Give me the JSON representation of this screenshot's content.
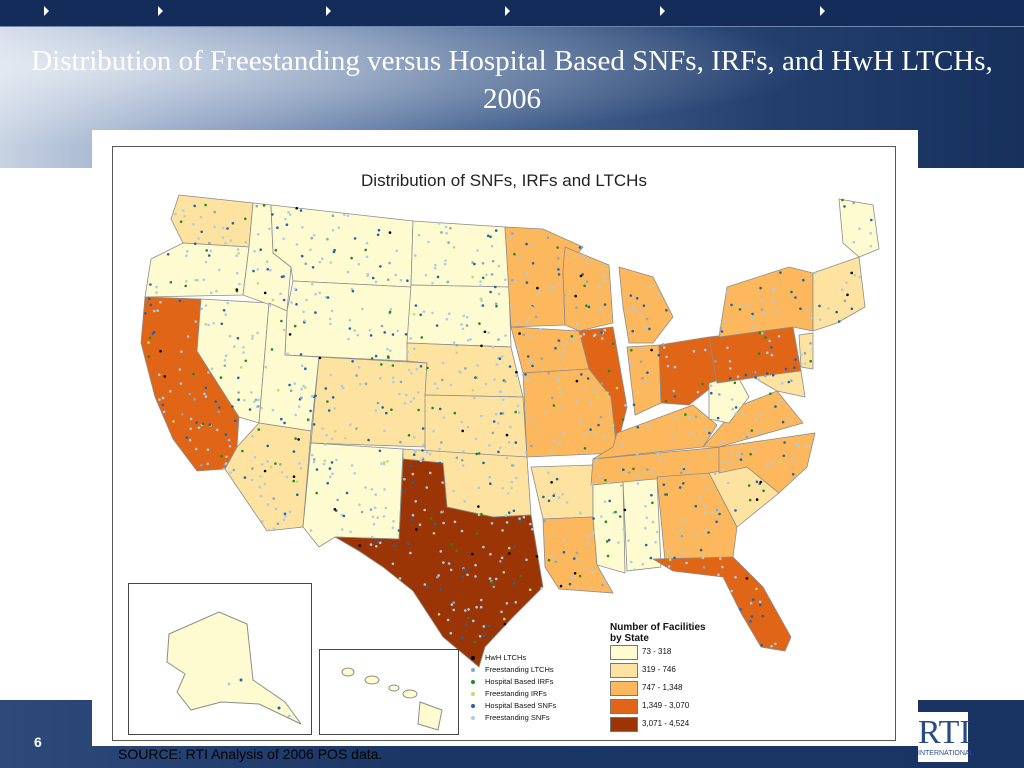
{
  "slide": {
    "title": "Distribution of Freestanding versus Hospital Based SNFs, IRFs, and HwH LTCHs, 2006",
    "page_number": "6",
    "source": "SOURCE: RTI Analysis of 2006 POS data.",
    "logo_text": "RTI",
    "logo_sub": "INTERNATIONAL"
  },
  "map": {
    "title": "Distribution of SNFs, IRFs and LTCHs",
    "legend_title": "Number of Facilities\nby State",
    "classes": [
      {
        "label": "73 - 318",
        "color": "#fdfbcf"
      },
      {
        "label": "319 - 746",
        "color": "#fde2a0"
      },
      {
        "label": "747 - 1,348",
        "color": "#fdb85e"
      },
      {
        "label": "1,349 - 3,070",
        "color": "#e06516"
      },
      {
        "label": "3,071 - 4,524",
        "color": "#9c3505"
      }
    ],
    "facility_types": [
      {
        "label": "HwH LTCHs",
        "color": "#000000"
      },
      {
        "label": "Freestanding LTCHs",
        "color": "#8aa6c0"
      },
      {
        "label": "Hospital Based IRFs",
        "color": "#1e8c1e"
      },
      {
        "label": "Freestanding IRFs",
        "color": "#c8d870"
      },
      {
        "label": "Hospital Based SNFs",
        "color": "#1f63b0"
      },
      {
        "label": "Freestanding SNFs",
        "color": "#a9cde6"
      }
    ]
  }
}
